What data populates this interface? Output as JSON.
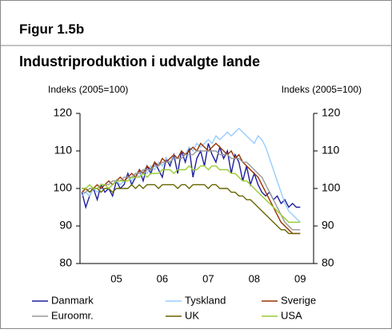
{
  "chart_data": {
    "type": "line",
    "figure_label": "Figur 1.5b",
    "title": "Industriproduktion i udvalgte lande",
    "y_label": "Indeks (2005=100)",
    "y2_label": "Indeks (2005=100)",
    "categories": [
      null,
      null,
      null,
      null,
      null,
      null,
      null,
      null,
      null,
      "05",
      null,
      null,
      null,
      null,
      null,
      null,
      null,
      null,
      null,
      null,
      null,
      "06",
      null,
      null,
      null,
      null,
      null,
      null,
      null,
      null,
      null,
      null,
      null,
      "07",
      null,
      null,
      null,
      null,
      null,
      null,
      null,
      null,
      null,
      null,
      null,
      "08",
      null,
      null,
      null,
      null,
      null,
      null,
      null,
      null,
      null,
      null,
      null,
      "09",
      null,
      null,
      null
    ],
    "ylim": [
      80,
      120
    ],
    "yticks": [
      80,
      90,
      100,
      110,
      120
    ],
    "y2lim": [
      80,
      120
    ],
    "y2ticks": [
      80,
      90,
      100,
      110,
      120
    ],
    "legend_position": "bottom",
    "series": [
      {
        "name": "Danmark",
        "color": "#1f1f9e",
        "values": [
          99,
          95,
          98,
          100,
          97,
          101,
          99,
          100,
          98,
          102,
          100,
          101,
          104,
          101,
          103,
          105,
          102,
          106,
          104,
          107,
          105,
          103,
          108,
          106,
          109,
          104,
          110,
          107,
          111,
          103,
          108,
          110,
          106,
          112,
          109,
          107,
          111,
          108,
          110,
          104,
          109,
          107,
          102,
          106,
          101,
          104,
          101,
          99,
          98,
          99,
          97,
          98,
          96,
          97,
          95,
          96,
          95,
          95,
          null,
          null,
          null
        ]
      },
      {
        "name": "Tyskland",
        "color": "#99ccff",
        "values": [
          98,
          99,
          98,
          100,
          99,
          100,
          101,
          100,
          101,
          102,
          101,
          102,
          103,
          102,
          104,
          103,
          105,
          104,
          106,
          105,
          107,
          106,
          108,
          107,
          109,
          108,
          110,
          109,
          111,
          110,
          112,
          111,
          112,
          113,
          112,
          114,
          113,
          114,
          115,
          114,
          115,
          116,
          115,
          114,
          113,
          112,
          114,
          113,
          111,
          108,
          105,
          102,
          99,
          96,
          94,
          93,
          92,
          91,
          null,
          null,
          null
        ]
      },
      {
        "name": "Sverige",
        "color": "#993300",
        "values": [
          99,
          100,
          99,
          100,
          101,
          100,
          101,
          102,
          101,
          102,
          103,
          102,
          103,
          104,
          103,
          105,
          104,
          106,
          105,
          107,
          106,
          108,
          107,
          108,
          109,
          108,
          110,
          109,
          110,
          111,
          110,
          112,
          111,
          110,
          111,
          112,
          111,
          110,
          109,
          110,
          108,
          109,
          107,
          106,
          105,
          104,
          103,
          101,
          99,
          97,
          95,
          93,
          91,
          90,
          89,
          88,
          88,
          88,
          null,
          null,
          null
        ]
      },
      {
        "name": "Euroomr.",
        "color": "#999999",
        "values": [
          99,
          99,
          100,
          100,
          100,
          101,
          101,
          101,
          102,
          102,
          102,
          103,
          103,
          103,
          104,
          104,
          105,
          105,
          105,
          106,
          106,
          107,
          107,
          107,
          108,
          108,
          108,
          109,
          109,
          109,
          110,
          110,
          110,
          110,
          110,
          110,
          109,
          109,
          109,
          108,
          108,
          108,
          107,
          107,
          106,
          105,
          104,
          103,
          101,
          99,
          97,
          95,
          93,
          91,
          90,
          89,
          89,
          89,
          null,
          null,
          null
        ]
      },
      {
        "name": "UK",
        "color": "#666600",
        "values": [
          100,
          100,
          99,
          100,
          100,
          99,
          100,
          100,
          99,
          100,
          100,
          100,
          100,
          101,
          100,
          101,
          100,
          101,
          101,
          101,
          100,
          101,
          101,
          101,
          101,
          100,
          101,
          101,
          100,
          101,
          101,
          101,
          101,
          100,
          101,
          101,
          100,
          100,
          100,
          99,
          99,
          98,
          98,
          97,
          97,
          96,
          95,
          94,
          93,
          92,
          91,
          90,
          89,
          89,
          88,
          88,
          88,
          88,
          null,
          null,
          null
        ]
      },
      {
        "name": "USA",
        "color": "#99cc33",
        "values": [
          100,
          100,
          101,
          100,
          100,
          101,
          101,
          100,
          101,
          102,
          102,
          102,
          102,
          103,
          103,
          103,
          104,
          103,
          104,
          104,
          104,
          105,
          105,
          105,
          104,
          105,
          105,
          105,
          106,
          105,
          105,
          106,
          106,
          105,
          106,
          106,
          105,
          105,
          105,
          104,
          104,
          103,
          102,
          102,
          101,
          100,
          99,
          98,
          97,
          96,
          95,
          94,
          93,
          92,
          91,
          91,
          91,
          91,
          null,
          null,
          null
        ]
      }
    ]
  }
}
